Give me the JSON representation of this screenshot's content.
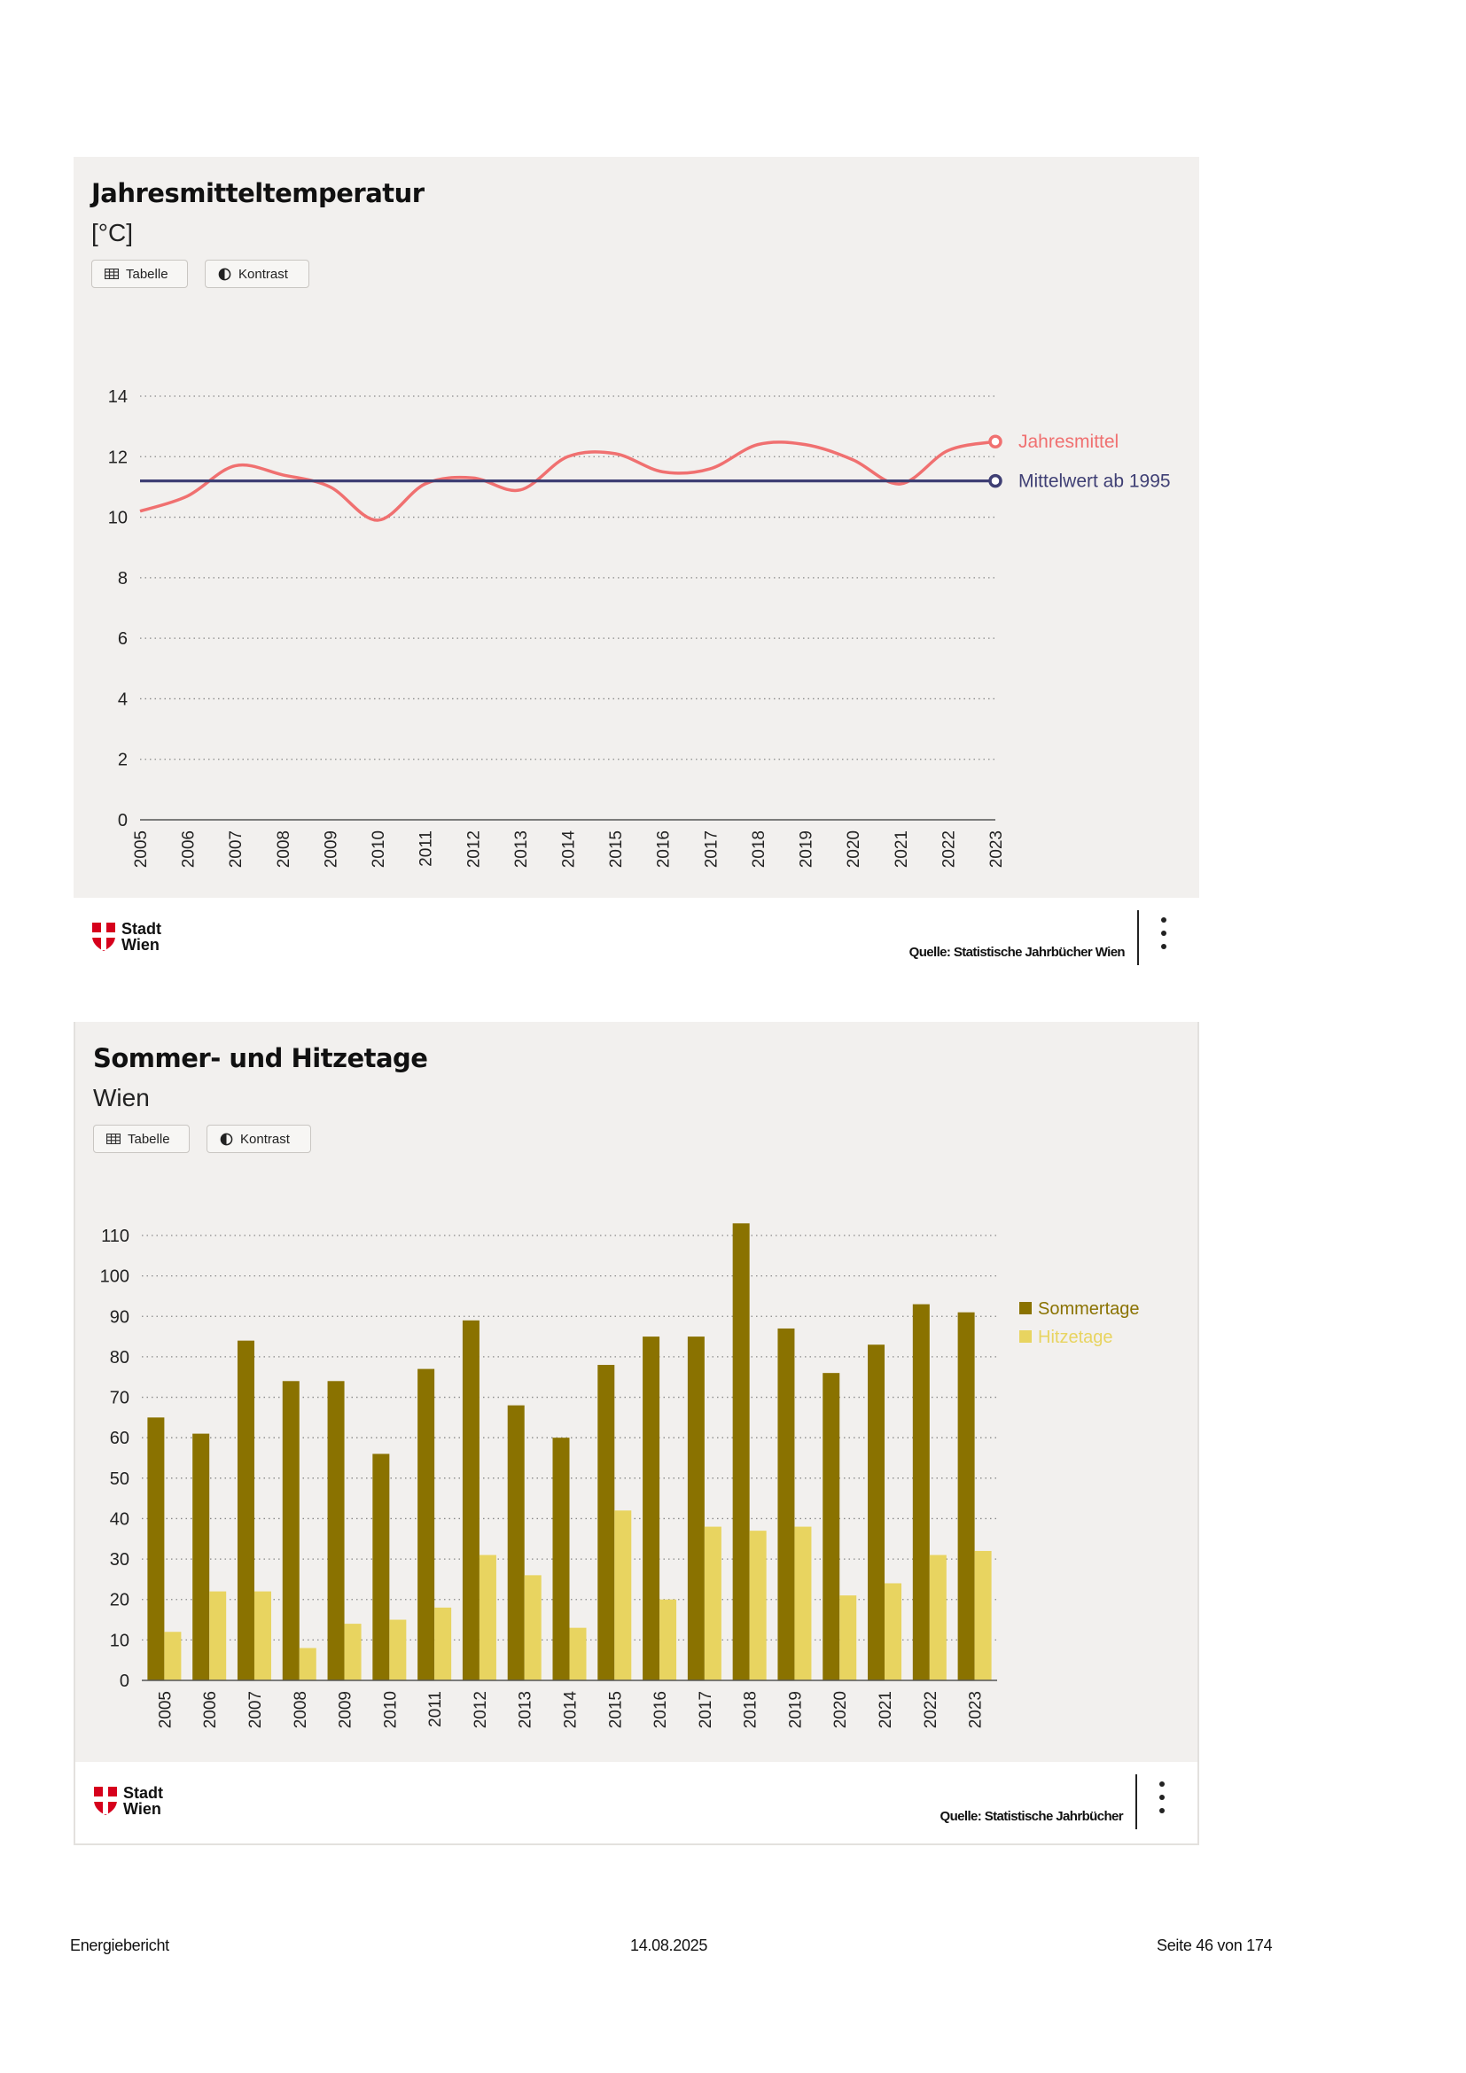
{
  "charts": [
    {
      "title": "Jahresmitteltemperatur",
      "subtitle": "[°C]",
      "buttons": {
        "table_label": "Tabelle",
        "contrast_label": "Kontrast",
        "table_icon": "table-icon",
        "contrast_icon": "contrast-icon"
      },
      "logo": {
        "line1": "Stadt",
        "line2": "Wien"
      },
      "source": "Quelle: Statistische Jahrbücher Wien"
    },
    {
      "title": "Sommer- und Hitzetage",
      "subtitle": "Wien",
      "buttons": {
        "table_label": "Tabelle",
        "contrast_label": "Kontrast",
        "table_icon": "table-icon",
        "contrast_icon": "contrast-icon"
      },
      "logo": {
        "line1": "Stadt",
        "line2": "Wien"
      },
      "source": "Quelle: Statistische Jahrbücher"
    }
  ],
  "chart_data": [
    {
      "type": "line",
      "title": "Jahresmitteltemperatur",
      "ylabel": "[°C]",
      "x": [
        "2005",
        "2006",
        "2007",
        "2008",
        "2009",
        "2010",
        "2011",
        "2012",
        "2013",
        "2014",
        "2015",
        "2016",
        "2017",
        "2018",
        "2019",
        "2020",
        "2021",
        "2022",
        "2023"
      ],
      "ylim": [
        0,
        14
      ],
      "yticks": [
        0,
        2,
        4,
        6,
        8,
        10,
        12,
        14
      ],
      "grid": true,
      "legend": "right",
      "series": [
        {
          "name": "Jahresmittel",
          "color": "#f07070",
          "values": [
            10.2,
            10.7,
            11.7,
            11.4,
            11.0,
            9.9,
            11.1,
            11.3,
            10.9,
            12.0,
            12.1,
            11.5,
            11.6,
            12.4,
            12.4,
            11.9,
            11.1,
            12.2,
            12.5
          ]
        },
        {
          "name": "Mittelwert ab 1995",
          "color": "#3f3f74",
          "values": [
            11.2,
            11.2,
            11.2,
            11.2,
            11.2,
            11.2,
            11.2,
            11.2,
            11.2,
            11.2,
            11.2,
            11.2,
            11.2,
            11.2,
            11.2,
            11.2,
            11.2,
            11.2,
            11.2
          ]
        }
      ]
    },
    {
      "type": "bar",
      "title": "Sommer- und Hitzetage",
      "ylabel": "",
      "categories": [
        "2005",
        "2006",
        "2007",
        "2008",
        "2009",
        "2010",
        "2011",
        "2012",
        "2013",
        "2014",
        "2015",
        "2016",
        "2017",
        "2018",
        "2019",
        "2020",
        "2021",
        "2022",
        "2023"
      ],
      "ylim": [
        0,
        110
      ],
      "yticks": [
        0,
        10,
        20,
        30,
        40,
        50,
        60,
        70,
        80,
        90,
        100,
        110
      ],
      "grid": true,
      "legend": "top-right",
      "series": [
        {
          "name": "Sommertage",
          "color": "#8a7200",
          "values": [
            65,
            61,
            84,
            74,
            74,
            56,
            77,
            89,
            68,
            60,
            78,
            85,
            85,
            113,
            87,
            76,
            83,
            93,
            91
          ]
        },
        {
          "name": "Hitzetage",
          "color": "#e8d460",
          "values": [
            12,
            22,
            22,
            8,
            14,
            15,
            18,
            31,
            26,
            13,
            42,
            20,
            38,
            37,
            38,
            21,
            24,
            31,
            32
          ]
        }
      ]
    }
  ],
  "page_footer": {
    "left": "Energiebericht",
    "center": "14.08.2025",
    "right": "Seite 46 von 174"
  }
}
